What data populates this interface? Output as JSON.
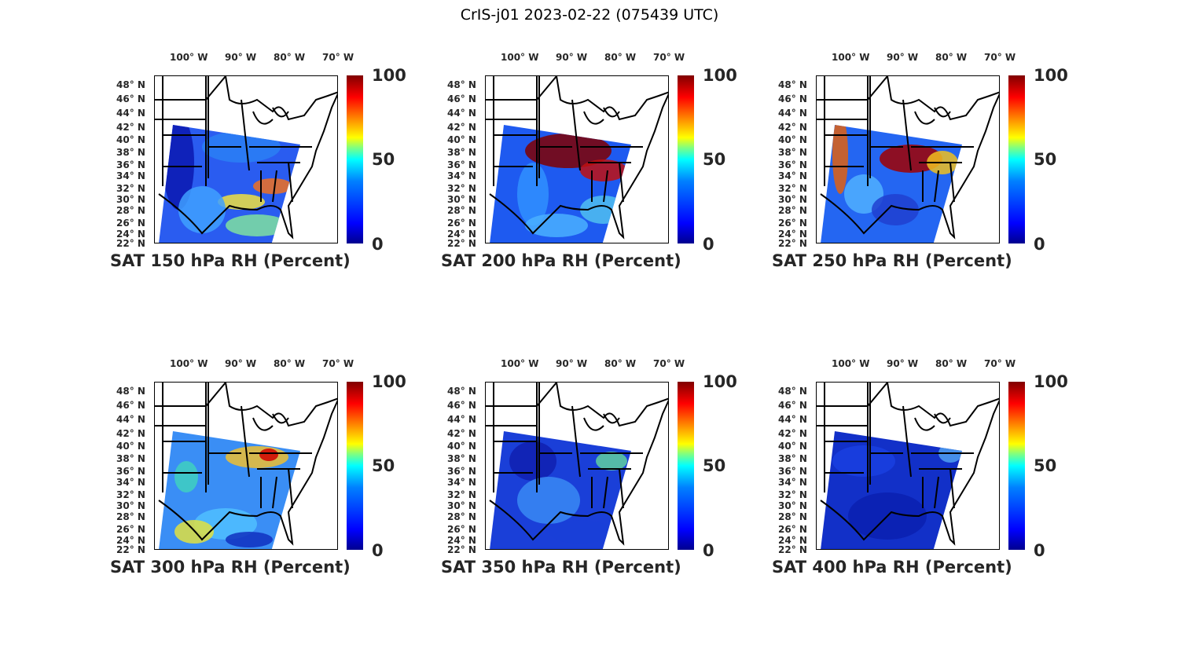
{
  "figure_title": "CrIS-j01 2023-02-22 (075439 UTC)",
  "lon_labels": [
    "100° W",
    "90° W",
    "80° W",
    "70° W"
  ],
  "lat_labels": [
    "48° N",
    "46° N",
    "44° N",
    "42° N",
    "40° N",
    "38° N",
    "36° N",
    "34° N",
    "32° N",
    "30° N",
    "28° N",
    "26° N",
    "24° N",
    "22° N"
  ],
  "colorbar": {
    "ticks": [
      "100",
      "50",
      "0"
    ],
    "range": [
      0,
      100
    ],
    "colormap": "jet"
  },
  "panels": [
    {
      "title": "SAT 150 hPa RH (Percent)",
      "level_hPa": 150
    },
    {
      "title": "SAT 200 hPa RH (Percent)",
      "level_hPa": 200
    },
    {
      "title": "SAT 250 hPa RH (Percent)",
      "level_hPa": 250
    },
    {
      "title": "SAT 300 hPa RH (Percent)",
      "level_hPa": 300
    },
    {
      "title": "SAT 350 hPa RH (Percent)",
      "level_hPa": 350
    },
    {
      "title": "SAT 400 hPa RH (Percent)",
      "level_hPa": 400
    }
  ]
}
